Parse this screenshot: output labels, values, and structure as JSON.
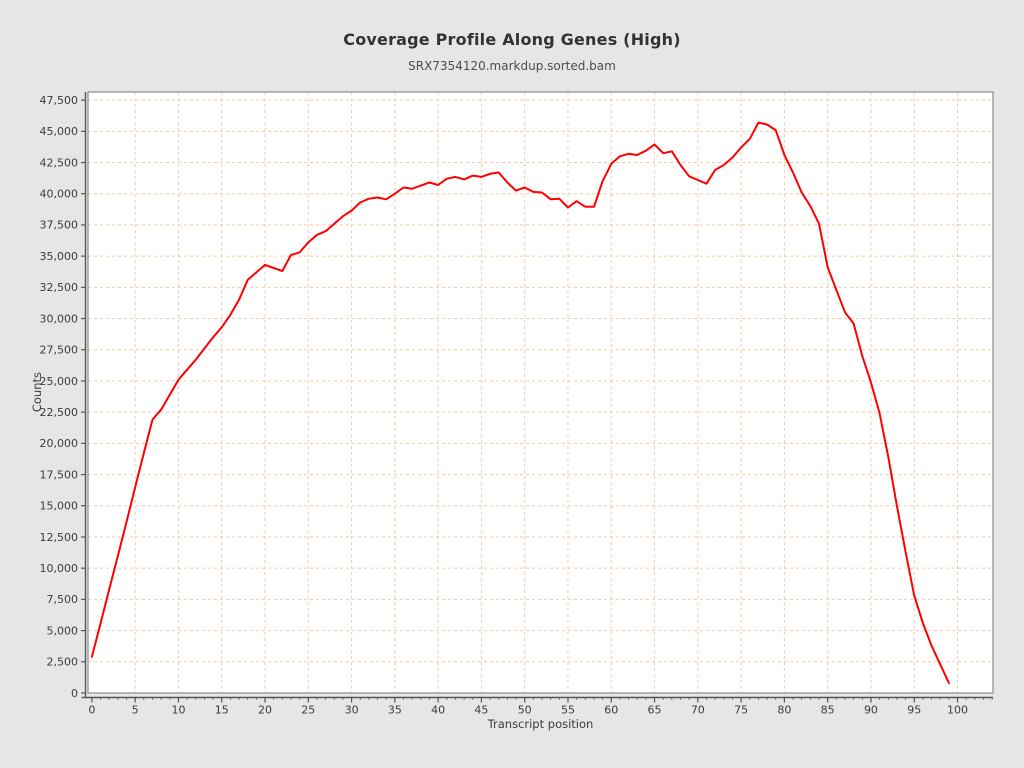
{
  "chart_data": {
    "type": "line",
    "title": "Coverage Profile Along Genes (High)",
    "subtitle": "SRX7354120.markdup.sorted.bam",
    "xlabel": "Transcript position",
    "ylabel": "Counts",
    "xlim": [
      -0.45,
      104.1
    ],
    "ylim": [
      0,
      48150
    ],
    "grid": true,
    "legend": "none",
    "x_ticks": [
      "0",
      "5",
      "10",
      "15",
      "20",
      "25",
      "30",
      "35",
      "40",
      "45",
      "50",
      "55",
      "60",
      "65",
      "70",
      "75",
      "80",
      "85",
      "90",
      "95",
      "100"
    ],
    "y_ticks": [
      "0",
      "2,500",
      "5,000",
      "7,500",
      "10,000",
      "12,500",
      "15,000",
      "17,500",
      "20,000",
      "22,500",
      "25,000",
      "27,500",
      "30,000",
      "32,500",
      "35,000",
      "37,500",
      "40,000",
      "42,500",
      "45,000",
      "47,500"
    ],
    "colors": {
      "background": "#e6e6e6",
      "plot_background": "#ffffff",
      "plot_border": "#8c8c8c",
      "gridline": "#f7cba1",
      "axis": "#555555",
      "series": "#ff0000"
    },
    "series": [
      {
        "name": "coverage",
        "x": [
          0,
          1,
          2,
          3,
          4,
          5,
          6,
          7,
          8,
          9,
          10,
          11,
          12,
          13,
          14,
          15,
          16,
          17,
          18,
          19,
          20,
          21,
          22,
          23,
          24,
          25,
          26,
          27,
          28,
          29,
          30,
          31,
          32,
          33,
          34,
          35,
          36,
          37,
          38,
          39,
          40,
          41,
          42,
          43,
          44,
          45,
          46,
          47,
          48,
          49,
          50,
          51,
          52,
          53,
          54,
          55,
          56,
          57,
          58,
          59,
          60,
          61,
          62,
          63,
          64,
          65,
          66,
          67,
          68,
          69,
          70,
          71,
          72,
          73,
          74,
          75,
          76,
          77,
          78,
          79,
          80,
          81,
          82,
          83,
          84,
          85,
          86,
          87,
          88,
          89,
          90,
          91,
          92,
          93,
          94,
          95,
          96,
          97,
          98,
          99
        ],
        "values": [
          2900,
          5600,
          8300,
          11000,
          13700,
          16500,
          19200,
          21900,
          22700,
          23900,
          25100,
          25900,
          26700,
          27600,
          28500,
          29300,
          30300,
          31500,
          33100,
          33700,
          34300,
          34050,
          33800,
          35100,
          35300,
          36100,
          36700,
          37000,
          37600,
          38200,
          38650,
          39300,
          39600,
          39700,
          39550,
          40000,
          40500,
          40400,
          40650,
          40900,
          40700,
          41200,
          41350,
          41150,
          41450,
          41350,
          41600,
          41700,
          40900,
          40250,
          40500,
          40150,
          40100,
          39550,
          39600,
          38900,
          39400,
          38950,
          38950,
          41000,
          42400,
          43000,
          43200,
          43100,
          43450,
          43950,
          43250,
          43400,
          42300,
          41400,
          41100,
          40800,
          41900,
          42300,
          42900,
          43700,
          44400,
          45700,
          45550,
          45100,
          43100,
          41700,
          40100,
          39000,
          37600,
          34100,
          32300,
          30500,
          29600,
          27000,
          24900,
          22400,
          18900,
          15000,
          11300,
          7800,
          5600,
          3800,
          2300,
          800
        ]
      }
    ]
  }
}
